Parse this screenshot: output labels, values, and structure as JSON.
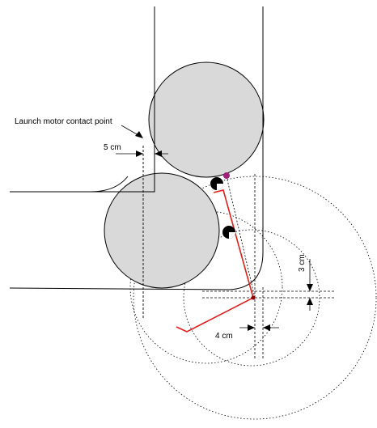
{
  "labels": {
    "launch_motor": "Launch motor contact point",
    "dim_5cm": "5 cm",
    "dim_3cm": "3 cm",
    "dim_4cm": "4 cm"
  },
  "colors": {
    "lever": "#e0201c",
    "pivot": "#c2185b",
    "ball_fill": "#d9d9d9",
    "outline": "#000000",
    "dotted": "#000000"
  }
}
